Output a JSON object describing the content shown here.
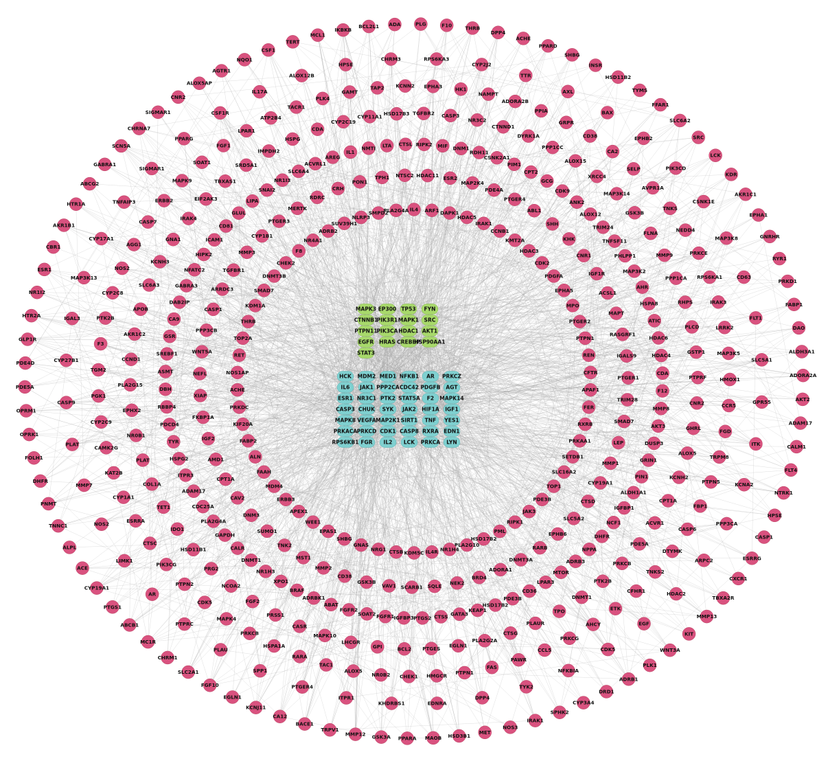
{
  "colors": {
    "outer_nodes": "#d9527f",
    "core_green": "#a8d96b",
    "core_cyan": "#7fd0d0",
    "edges": "#a9a9a9",
    "background": "#ffffff"
  },
  "core_green": [
    "MAPK3",
    "EP300",
    "TP53",
    "FYN",
    "CTNNB1",
    "PIK3R1",
    "MAPK1",
    "SRC",
    "PTPN11",
    "PIK3CA",
    "HDAC1",
    "AKT1",
    "EGFR",
    "HRAS",
    "CREBBP",
    "HSP90AA1",
    "STAT3"
  ],
  "core_cyan": [
    "HCK",
    "MDM2",
    "MED1",
    "NFKB1",
    "AR",
    "PRKCZ",
    "IL6",
    "JAK1",
    "PPP2CA",
    "CDC42",
    "PDGFB",
    "AGT",
    "ESR1",
    "NR3C1",
    "PTK2",
    "STAT5A",
    "F2",
    "MAPK14",
    "CASP3",
    "CHUK",
    "SYK",
    "JAK2",
    "HIF1A",
    "IGF1",
    "MAPK8",
    "VEGFA",
    "MAP2K1",
    "SIRT1",
    "TNF",
    "YES1",
    "PRKACA",
    "PRKCD",
    "CDK1",
    "CASP8",
    "RXRA",
    "EDN1",
    "RPS6KB1",
    "FGR",
    "IL2",
    "LCK",
    "PRKCA",
    "LYN"
  ],
  "rings": [
    {
      "name": "ring-1",
      "nodes": [
        "IL4",
        "ARF1",
        "DAPK1",
        "HDAC5",
        "IRAK1",
        "CCNB1",
        "KMT2A",
        "HDAC3",
        "CDK2",
        "PDGFA",
        "EPHA5",
        "MPO",
        "PTGER2",
        "PTPN1",
        "REN",
        "CFTR",
        "APAF1",
        "FER",
        "RXRB",
        "PRKAA1",
        "SETDB1",
        "SLC16A2",
        "TOP1",
        "PDE3B",
        "JAK3",
        "RIPK1",
        "PML",
        "HSD17B2",
        "PLA2G10",
        "NR1H4",
        "IL4R",
        "KDM5C",
        "CTSB",
        "NRG1",
        "GNAS",
        "SHBG",
        "EPAS1",
        "WEE1",
        "APEX1",
        "ERBB3",
        "MDM4",
        "FAAH",
        "ALN",
        "FABP2",
        "KIF20A",
        "PRKDC",
        "ACHE",
        "NOS1AP",
        "RET",
        "TOP2A",
        "THRB",
        "KDM1A",
        "SMAD7",
        "DNMT3B",
        "CHEK2",
        "F8",
        "NR4A1",
        "ADRB2",
        "SUV39H1",
        "NLRP3",
        "SMPD2",
        "PLA2G4A"
      ]
    },
    {
      "name": "ring-2",
      "nodes": [
        "ESR2",
        "MAP2K4",
        "PDE4A",
        "PTGER4",
        "ABL1",
        "SHH",
        "KHK",
        "CNR1",
        "IGF1R",
        "ACSL1",
        "MAPT",
        "RASGRF1",
        "IGALS9",
        "PTGER1",
        "TRIM28",
        "SMAD7",
        "LEP",
        "MMP1",
        "CYP19A1",
        "CTSD",
        "SLC5A2",
        "EPHB6",
        "RARB",
        "DNMT3A",
        "ADORA1",
        "BRD4",
        "NEK2",
        "SQLE",
        "SCARB1",
        "VAV1",
        "GSK3B",
        "CD38",
        "MMP2",
        "MST1",
        "TNK2",
        "SUMO1",
        "DNM3",
        "CAV2",
        "CPT1A",
        "AMD1",
        "IGF2",
        "FKBP1A",
        "XIAP",
        "NEFL",
        "WNT5A",
        "PPP3CB",
        "CASP1",
        "ARRDC3",
        "TGFBR1",
        "MMP3",
        "CYP1B1",
        "PTGER3",
        "MERTK",
        "RDRC",
        "CRH",
        "PON1",
        "TPH1",
        "NTSC2",
        "HDAC11"
      ]
    },
    {
      "name": "ring-3",
      "nodes": [
        "CSNK2A1",
        "PIM1",
        "CPT2",
        "GCG",
        "CDK9",
        "ANK2",
        "ALOX12",
        "TRIM24",
        "TNFSF11",
        "PHLPP1",
        "MAP3K2",
        "AHR",
        "HSPA8",
        "ATIC",
        "HDAC6",
        "HDAC4",
        "CDA",
        "F12",
        "MMP8",
        "AKT3",
        "DUSP3",
        "GRIN1",
        "PIN1",
        "ALDH1A1",
        "IGFBP1",
        "NCF1",
        "DHFR",
        "NPPA",
        "ADRB3",
        "MTOR",
        "LPAR3",
        "CD36",
        "PDE3B",
        "HSD17B2",
        "KEAP1",
        "GATA3",
        "CTSS",
        "PTGS2",
        "IGFBP3",
        "FGFR1",
        "SOAT2",
        "FGFR2",
        "ABAT",
        "ADRBK1",
        "BRAF",
        "XPO1",
        "NR1H3",
        "DNMT1",
        "CALR",
        "GAPDH",
        "PLA2G4A",
        "CDC25A",
        "ADAM17",
        "ITPR3",
        "HSPG2",
        "TYR",
        "PDCD4",
        "RBBP4",
        "DBH",
        "ASMT",
        "SREBF1",
        "GSR",
        "CA9",
        "DAB2IP",
        "GABRA3",
        "NFATC2",
        "HIPK2",
        "ICAM1",
        "CD81",
        "GLUL",
        "LIPA",
        "SNAI2",
        "NR1I3",
        "SLC6A4",
        "ACVRL1",
        "AREG",
        "IL1",
        "NMTI",
        "LTA",
        "CTSL",
        "RIPK2",
        "MIF",
        "DNM1",
        "RDH11"
      ]
    },
    {
      "name": "ring-4",
      "nodes": [
        "PPP1CC",
        "ALOX15",
        "XRCC4",
        "MAP3K14",
        "GSK3B",
        "FLNA",
        "MMP9",
        "PPP1CA",
        "RHPS",
        "PLCD",
        "GSTP1",
        "PTPRF",
        "CNR2",
        "GHRL",
        "ALOX5",
        "KCNH2",
        "CPT1A",
        "ACVR1",
        "PDE5A",
        "PRKCB",
        "PTK2B",
        "DNMT1",
        "TPO",
        "PLAUR",
        "CTSG",
        "PLA2G2A",
        "EGLN1",
        "PTGES",
        "BCL2",
        "GPI",
        "LHCGR",
        "MAPK10",
        "CASR",
        "PRSS1",
        "FGF2",
        "NCOA2",
        "PRG2",
        "HSD11B1",
        "IDO1",
        "TET1",
        "COL1A",
        "PLAT",
        "NR0B1",
        "EPHX2",
        "PLA2G15",
        "CCND1",
        "AKR1C2",
        "APOB",
        "SLC6A3",
        "KCNH3",
        "GNA1",
        "IRAK4",
        "EIF2AK3",
        "TBXAS1",
        "SRD5A1",
        "IMPDH2",
        "HSPG",
        "CDA",
        "CYP2C19",
        "CYP11A1",
        "HSD17B3",
        "TGFBR2",
        "CASP3",
        "NR3C2",
        "CTNND1",
        "DYRK1A"
      ]
    },
    {
      "name": "ring-5",
      "nodes": [
        "CA2",
        "SELP",
        "AVPR1A",
        "TNKS",
        "NEDD4",
        "PRKCE",
        "RPS6KA1",
        "IRAK3",
        "LRRK2",
        "MAP3K5",
        "HMOX1",
        "CCR5",
        "FGD",
        "TRPM8",
        "PTPN5",
        "FBP1",
        "CASP6",
        "DTYMK",
        "TNKS2",
        "CFHR1",
        "ETK",
        "AHCY",
        "PRKCG",
        "CCL5",
        "PAWR",
        "FAS",
        "PTPN1",
        "HMGCR",
        "CHEK1",
        "NR0B2",
        "ALOX5",
        "TAC1",
        "RARA",
        "HSPA1A",
        "PRKCB",
        "MAPK4",
        "CDK5",
        "PTPN2",
        "PIK3CG",
        "CTSC",
        "ESRRA",
        "CYP1A1",
        "KAT2B",
        "CAMK2G",
        "CYP2C9",
        "PGK1",
        "TGM2",
        "F3",
        "PTK2B",
        "CYP2C8",
        "NOS2",
        "AGG1",
        "CASP7",
        "ERBB2",
        "MAPK9",
        "SOAT1",
        "FGF1",
        "LPAR1",
        "ATP2B4",
        "TACR1",
        "PLK4",
        "GAMT",
        "TAP2",
        "KCNN2",
        "EPHA3",
        "HK1",
        "NAMPT",
        "ADORA2B",
        "PPIA",
        "GRPR",
        "CD38"
      ]
    },
    {
      "name": "ring-6",
      "nodes": [
        "PIK3CD",
        "CSNK1E",
        "MAP3K8",
        "CD63",
        "FLT1",
        "SLC5A1",
        "GPR55",
        "ITK",
        "KCNA2",
        "PPP3CA",
        "ARPC2",
        "HDAC2",
        "EGF",
        "CDK5",
        "NFKBIA",
        "TYK2",
        "DPP4",
        "EDNRA",
        "KHDRBS1",
        "ITPR1",
        "PTGER4",
        "SPP1",
        "PLAU",
        "PTPRC",
        "AR",
        "LIMK1",
        "NOS2",
        "MMP7",
        "PLAT",
        "CASP9",
        "CYP27B1",
        "IGAL3",
        "MAP3K13",
        "CYP17A1",
        "TNFAIP3",
        "SIGMAR1",
        "PPARG",
        "CSF1R",
        "IL17A",
        "ALOX12B",
        "HPSE",
        "CHRM3",
        "RPS6KA3",
        "CYP2J2",
        "TTR",
        "AXL",
        "BAX",
        "EPHB2"
      ]
    },
    {
      "name": "ring-7",
      "nodes": [
        "AKR1C1",
        "EPHA1",
        "GNRHR",
        "RYR1",
        "PRKD1",
        "FABP1",
        "DAO",
        "ALDH3A1",
        "ADORA2A",
        "AKT2",
        "ADAM17",
        "CALM1",
        "FLT4",
        "NTRK1",
        "HPSE",
        "CASP1",
        "ESRRG",
        "CXCR1",
        "TBXA2R",
        "MMP13",
        "KIT",
        "WNT3A",
        "PLK1",
        "ADRB1",
        "DRD1",
        "CYP3A4",
        "SPHK2",
        "IRAK1",
        "NOS3",
        "MET",
        "HSD3B1",
        "MAOB",
        "PPARA",
        "GSK3A",
        "MMP12",
        "TRPV1",
        "BACE1",
        "CA12",
        "KCNJ11",
        "EGLN1",
        "FGF10",
        "SLC2A1",
        "CHRM1",
        "MC1R",
        "ABCB1",
        "PTGS1",
        "CYP19A1",
        "ACE",
        "ALPL",
        "TNNC1",
        "PNMT",
        "DHFR",
        "FOLH1",
        "OPRK1",
        "OPRM1",
        "PDE5A",
        "PDE4D",
        "GLP1R",
        "HTR2A",
        "NR1I2",
        "ESR1",
        "CBR1",
        "AKR1B1",
        "HTR1A",
        "ABCG2",
        "GABRA1",
        "SCN5A",
        "CHRNA7",
        "SIGMAR1",
        "CNR2",
        "ALOX5AP",
        "AGTR1",
        "NQO1",
        "CSF1",
        "TERT",
        "MCL1",
        "IKBKB",
        "BCL2L1",
        "ADA",
        "PLG",
        "F10",
        "THRB",
        "DPP4",
        "ACHE",
        "PPARD",
        "SHBG",
        "INSR",
        "HSD11B2",
        "TYMS",
        "FFAR1",
        "SLC6A2",
        "SRC",
        "LCK",
        "KDR"
      ]
    }
  ]
}
